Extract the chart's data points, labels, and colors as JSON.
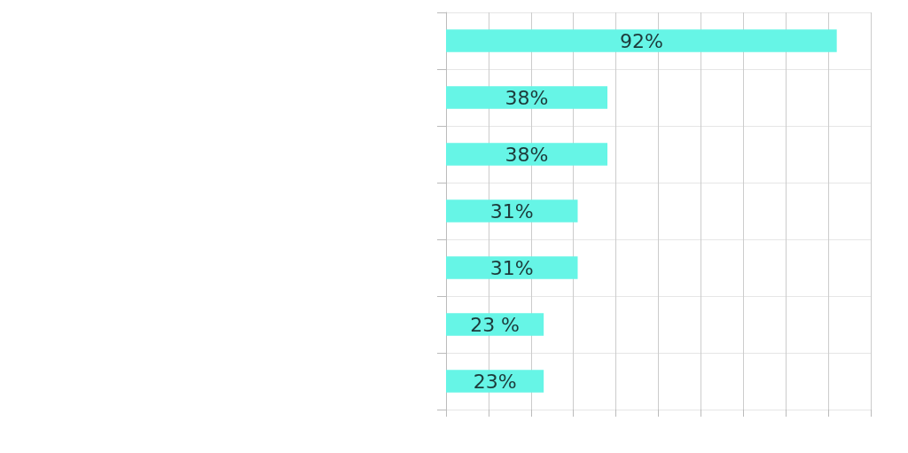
{
  "chart_data": {
    "type": "bar",
    "orientation": "horizontal",
    "categories": [
      null,
      null,
      null,
      null,
      null,
      null,
      null
    ],
    "values": [
      92,
      38,
      38,
      31,
      31,
      23,
      23
    ],
    "value_labels": [
      "92%",
      "38%",
      "38%",
      "31%",
      "31%",
      "23 %",
      "23%"
    ],
    "color": "#66f5e6",
    "xlim": [
      0,
      100
    ],
    "xticks": [
      {
        "value": 0,
        "label": null
      },
      {
        "value": 10,
        "label": null
      },
      {
        "value": 20,
        "label": null
      },
      {
        "value": 30,
        "label": null
      },
      {
        "value": 40,
        "label": null
      },
      {
        "value": 50,
        "label": null
      },
      {
        "value": 60,
        "label": null
      },
      {
        "value": 70,
        "label": null
      },
      {
        "value": 80,
        "label": null
      },
      {
        "value": 90,
        "label": null
      },
      {
        "value": 100,
        "label": null
      }
    ],
    "grid": true
  }
}
